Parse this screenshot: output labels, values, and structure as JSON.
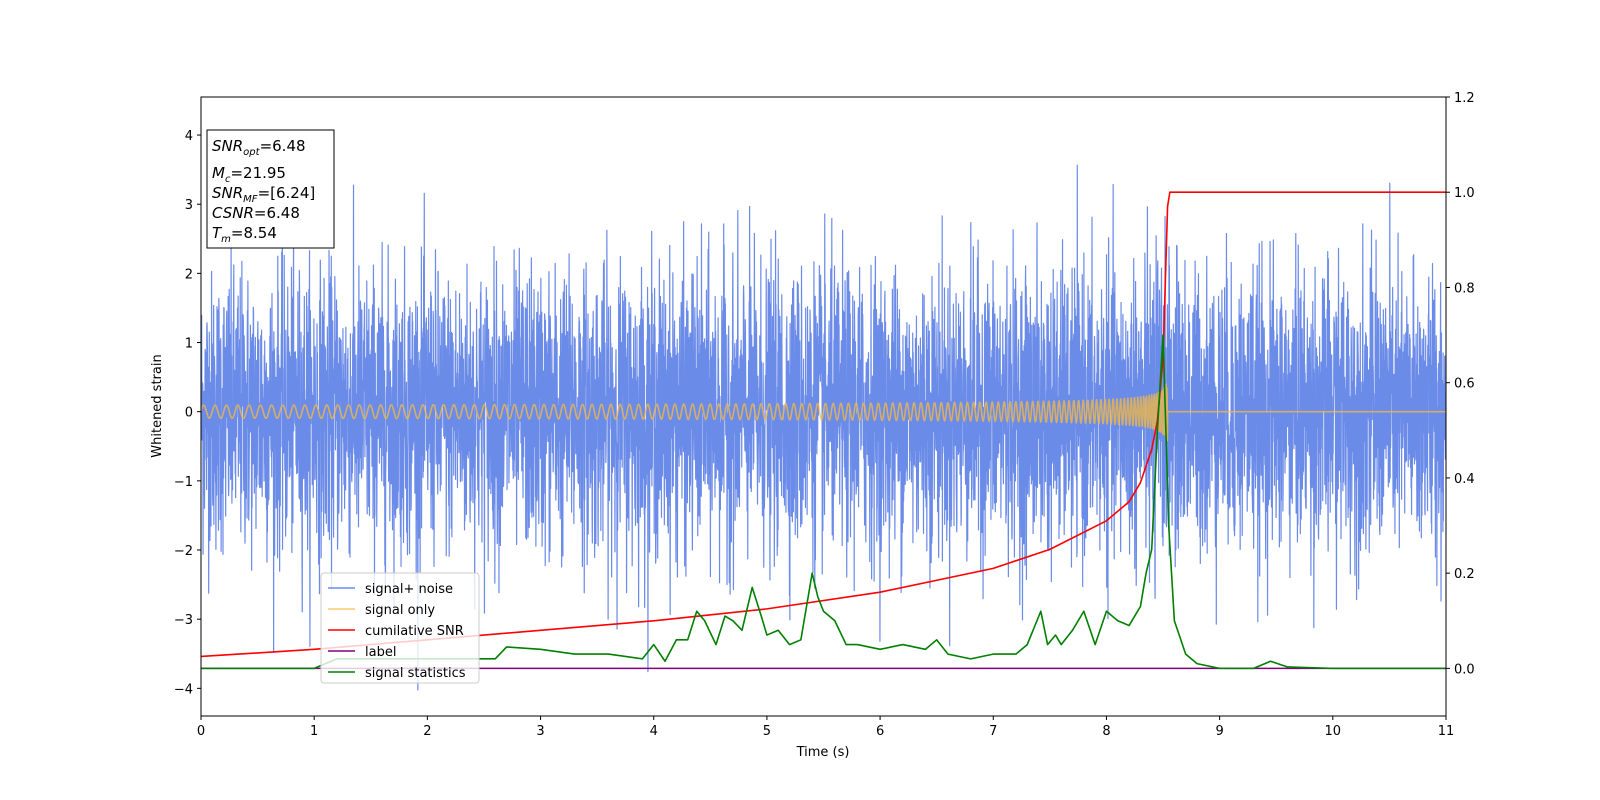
{
  "chart_data": {
    "type": "line",
    "xlabel": "Time (s)",
    "ylabel": "Whitened strain",
    "xlim": [
      0,
      11
    ],
    "ylim_left": [
      -4.4,
      4.55
    ],
    "ylim_right": [
      -0.1,
      1.2
    ],
    "x_ticks": [
      0,
      1,
      2,
      3,
      4,
      5,
      6,
      7,
      8,
      9,
      10,
      11
    ],
    "y_ticks_left": [
      -4,
      -3,
      -2,
      -1,
      0,
      1,
      2,
      3,
      4
    ],
    "y_ticks_right": [
      0.0,
      0.2,
      0.4,
      0.6,
      0.8,
      1.0,
      1.2
    ],
    "y_tick_labels_left": [
      "−4",
      "−3",
      "−2",
      "−1",
      "0",
      "1",
      "2",
      "3",
      "4"
    ],
    "y_tick_labels_right": [
      "0.0",
      "0.2",
      "0.4",
      "0.6",
      "0.8",
      "1.0",
      "1.2"
    ],
    "legend_position": "lower-left",
    "series": [
      {
        "name": "signal+ noise",
        "color": "#6b8be8",
        "axis": "left",
        "kind": "noise",
        "amplitude": 1.0,
        "merger_time": 8.54
      },
      {
        "name": "signal only",
        "color": "#f5b942",
        "axis": "left",
        "kind": "chirp",
        "merger_time": 8.54,
        "peak_amplitude": 1.3
      },
      {
        "name": "cumilative SNR",
        "color": "#ff0000",
        "axis": "right",
        "x": [
          0,
          1,
          2,
          3,
          4,
          5,
          6,
          7,
          7.5,
          8,
          8.2,
          8.3,
          8.4,
          8.45,
          8.5,
          8.54,
          8.56,
          11
        ],
        "y": [
          0.025,
          0.04,
          0.06,
          0.08,
          0.1,
          0.125,
          0.16,
          0.21,
          0.25,
          0.31,
          0.35,
          0.39,
          0.46,
          0.52,
          0.65,
          0.97,
          1.0,
          1.0
        ]
      },
      {
        "name": "label",
        "color": "#800080",
        "axis": "right",
        "x": [
          0,
          11
        ],
        "y": [
          0.0,
          0.0
        ]
      },
      {
        "name": "signal statistics",
        "color": "#008000",
        "axis": "right",
        "x": [
          0,
          1,
          1.2,
          1.3,
          2.6,
          2.7,
          3.0,
          3.3,
          3.6,
          3.9,
          4.0,
          4.1,
          4.2,
          4.3,
          4.38,
          4.45,
          4.55,
          4.63,
          4.7,
          4.78,
          4.87,
          4.95,
          5.0,
          5.1,
          5.2,
          5.3,
          5.4,
          5.45,
          5.5,
          5.6,
          5.7,
          5.8,
          6.0,
          6.2,
          6.4,
          6.5,
          6.6,
          6.8,
          7.0,
          7.2,
          7.3,
          7.42,
          7.48,
          7.55,
          7.6,
          7.7,
          7.8,
          7.9,
          8.0,
          8.1,
          8.2,
          8.3,
          8.35,
          8.4,
          8.45,
          8.5,
          8.55,
          8.6,
          8.7,
          8.8,
          9.0,
          9.3,
          9.45,
          9.6,
          10.0,
          10.3,
          11
        ],
        "y": [
          0.0,
          0.0,
          0.02,
          0.02,
          0.02,
          0.045,
          0.04,
          0.03,
          0.03,
          0.02,
          0.05,
          0.015,
          0.06,
          0.06,
          0.12,
          0.1,
          0.05,
          0.11,
          0.1,
          0.08,
          0.17,
          0.11,
          0.07,
          0.08,
          0.05,
          0.06,
          0.2,
          0.15,
          0.12,
          0.1,
          0.05,
          0.05,
          0.04,
          0.05,
          0.04,
          0.06,
          0.03,
          0.02,
          0.03,
          0.03,
          0.05,
          0.12,
          0.05,
          0.07,
          0.05,
          0.08,
          0.12,
          0.05,
          0.12,
          0.1,
          0.09,
          0.13,
          0.2,
          0.25,
          0.5,
          0.7,
          0.3,
          0.1,
          0.03,
          0.01,
          0.0,
          0.0,
          0.015,
          0.003,
          0.0,
          0.0,
          0.0
        ]
      }
    ],
    "annotation": {
      "snr_opt": "=6.48",
      "mc": "=21.95",
      "snr_mf": "=[6.24]",
      "csnr": "=6.48",
      "tm": "=8.54"
    }
  }
}
